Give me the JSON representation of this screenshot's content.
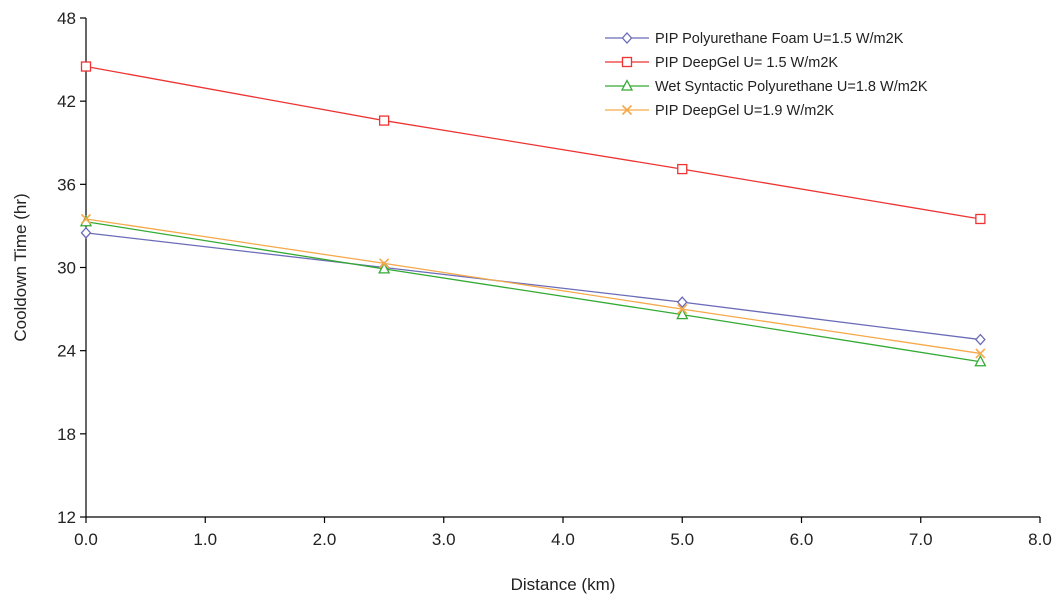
{
  "chart_data": {
    "type": "line",
    "xlabel": "Distance (km)",
    "ylabel": "Cooldown Time (hr)",
    "xlim": [
      0,
      8
    ],
    "ylim": [
      12,
      48
    ],
    "xticks": [
      0,
      1,
      2,
      3,
      4,
      5,
      6,
      7,
      8
    ],
    "xtick_labels": [
      "0.0",
      "1.0",
      "2.0",
      "3.0",
      "4.0",
      "5.0",
      "6.0",
      "7.0",
      "8.0"
    ],
    "yticks": [
      12,
      18,
      24,
      30,
      36,
      42,
      48
    ],
    "ytick_labels": [
      "12",
      "18",
      "24",
      "30",
      "36",
      "42",
      "48"
    ],
    "grid": false,
    "legend_position": "top-right",
    "x": [
      0,
      2.5,
      5,
      7.5
    ],
    "series": [
      {
        "name": "PIP Polyurethane Foam U=1.5 W/m2K",
        "values": [
          32.5,
          30.0,
          27.5,
          24.8
        ],
        "color": "#6b6bb8",
        "marker": "diamond"
      },
      {
        "name": "PIP DeepGel U= 1.5 W/m2K",
        "values": [
          44.5,
          40.6,
          37.1,
          33.5
        ],
        "color": "#ee3333",
        "marker": "square"
      },
      {
        "name": "Wet Syntactic Polyurethane U=1.8 W/m2K",
        "values": [
          33.3,
          29.9,
          26.6,
          23.2
        ],
        "color": "#33aa33",
        "marker": "triangle"
      },
      {
        "name": "PIP DeepGel U=1.9 W/m2K",
        "values": [
          33.5,
          30.3,
          27.0,
          23.8
        ],
        "color": "#f5a94a",
        "marker": "x"
      }
    ]
  }
}
